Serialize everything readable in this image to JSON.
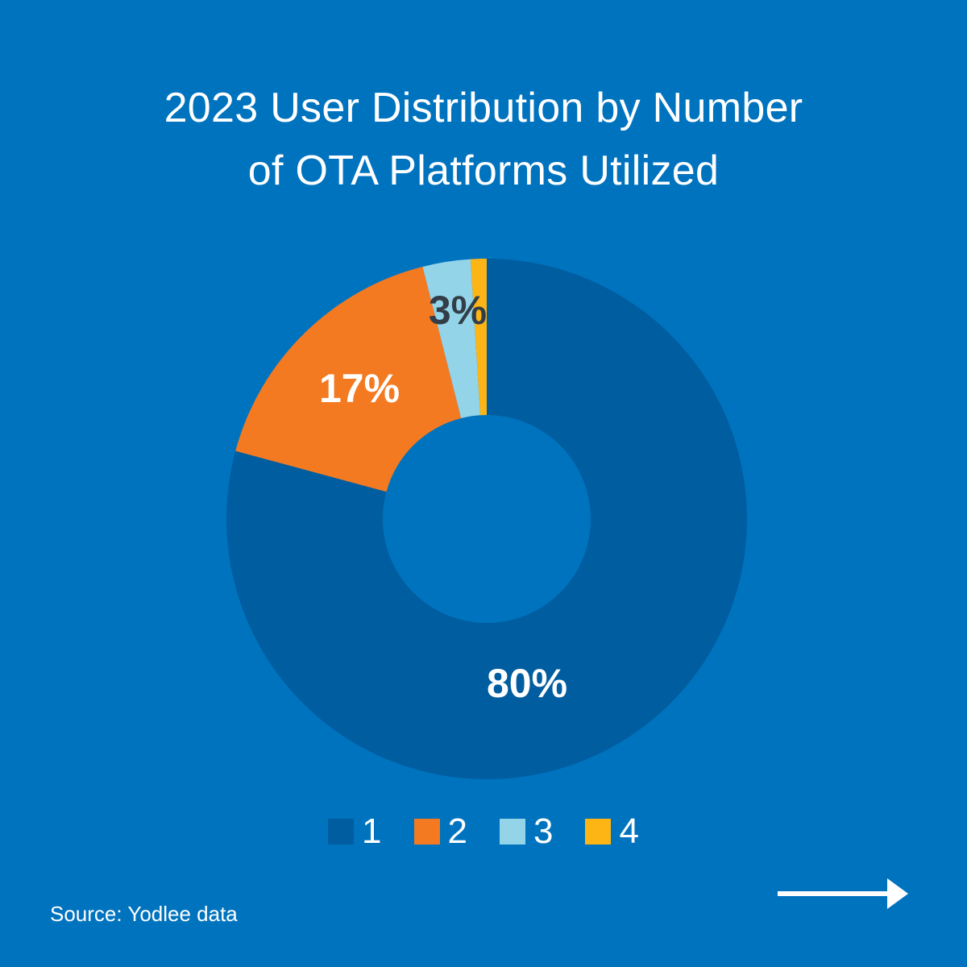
{
  "chart_data": {
    "type": "pie",
    "title_lines": [
      "2023 User Distribution by Number",
      "of OTA Platforms Utilized"
    ],
    "categories": [
      "1",
      "2",
      "3",
      "4"
    ],
    "values": [
      80,
      17,
      3,
      1
    ],
    "labels": [
      "80%",
      "17%",
      "3%",
      ""
    ],
    "colors": [
      "#005DA0",
      "#F47A21",
      "#93D4E8",
      "#FDB515"
    ],
    "label_colors": [
      "#ffffff",
      "#ffffff",
      "#333d47",
      "#ffffff"
    ],
    "donut": true,
    "legend_position": "bottom"
  },
  "source": "Source: Yodlee data",
  "nav": {
    "next_icon": "arrow-right-icon"
  }
}
